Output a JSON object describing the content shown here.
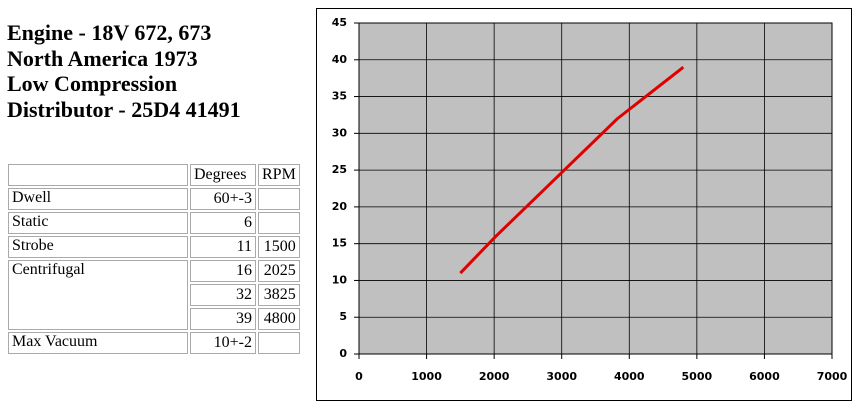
{
  "header": {
    "lines": [
      "Engine - 18V 672, 673",
      "North America 1973",
      "Low Compression",
      "Distributor - 25D4 41491"
    ]
  },
  "table": {
    "columns": [
      "Degrees",
      "RPM"
    ],
    "rows": [
      {
        "label": "Dwell",
        "entries": [
          {
            "degrees": "60+-3"
          }
        ]
      },
      {
        "label": "Static",
        "entries": [
          {
            "degrees": 6
          }
        ]
      },
      {
        "label": "Strobe",
        "entries": [
          {
            "degrees": 11,
            "rpm": 1500
          }
        ]
      },
      {
        "label": "Centrifugal",
        "entries": [
          {
            "degrees": 16,
            "rpm": 2025
          },
          {
            "degrees": 32,
            "rpm": 3825
          },
          {
            "degrees": 39,
            "rpm": 4800
          }
        ]
      },
      {
        "label": "Max Vacuum",
        "entries": [
          {
            "degrees": "10+-2"
          }
        ]
      }
    ]
  },
  "chart_data": {
    "type": "line",
    "x": [
      1500,
      2025,
      3825,
      4800
    ],
    "series": [
      {
        "color": "#e00000",
        "values": [
          11,
          16,
          32,
          39
        ]
      }
    ],
    "xlim": [
      0,
      7000
    ],
    "xticks": [
      0,
      1000,
      2000,
      3000,
      4000,
      5000,
      6000,
      7000
    ],
    "ylim": [
      0,
      45
    ],
    "yticks": [
      0,
      5,
      10,
      15,
      20,
      25,
      30,
      35,
      40,
      45
    ],
    "grid": true,
    "plot_background": "#c0c0c0"
  }
}
